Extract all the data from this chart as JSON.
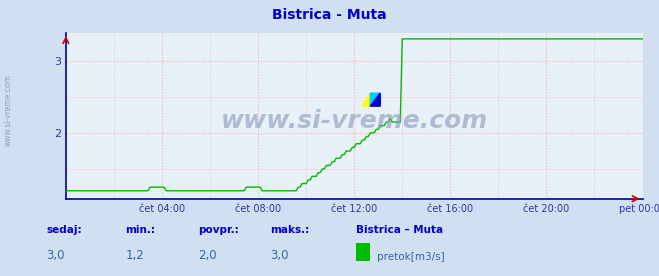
{
  "title": "Bistrica - Muta",
  "title_color": "#0000cc",
  "bg_color": "#d0e0f0",
  "plot_bg_color": "#e8f0f8",
  "grid_color": "#ffaaaa",
  "line_color": "#00bb00",
  "line_width": 1.0,
  "ylim_min": 1.09,
  "ylim_max": 3.38,
  "ytick_vals": [
    2.0,
    3.0
  ],
  "ytick_labels": [
    "2",
    "3"
  ],
  "x_tick_positions": [
    48,
    96,
    144,
    192,
    240,
    288
  ],
  "x_labels": [
    "čet 04:00",
    "čet 08:00",
    "čet 12:00",
    "čet 16:00",
    "čet 20:00",
    "pet 00:00"
  ],
  "xlabel_color": "#3333aa",
  "ylabel_color": "#3333aa",
  "spine_color": "#0000aa",
  "arrow_color": "#cc0000",
  "footer_label_color": "#0000cc",
  "footer_value_color": "#3366aa",
  "footer_labels": [
    "sedaj:",
    "min.:",
    "povpr.:",
    "maks.:"
  ],
  "footer_values": [
    "3,0",
    "1,2",
    "2,0",
    "3,0"
  ],
  "footer_series_name": "Bistrica – Muta",
  "footer_legend_label": "pretok[m3/s]",
  "footer_legend_color": "#00bb00",
  "watermark": "www.si-vreme.com",
  "watermark_color": "#8899bb",
  "side_label": "www.si-vreme.com",
  "side_label_color": "#8899bb",
  "logo_yellow": "#ffff00",
  "logo_cyan": "#00ccff",
  "logo_blue": "#0000cc"
}
